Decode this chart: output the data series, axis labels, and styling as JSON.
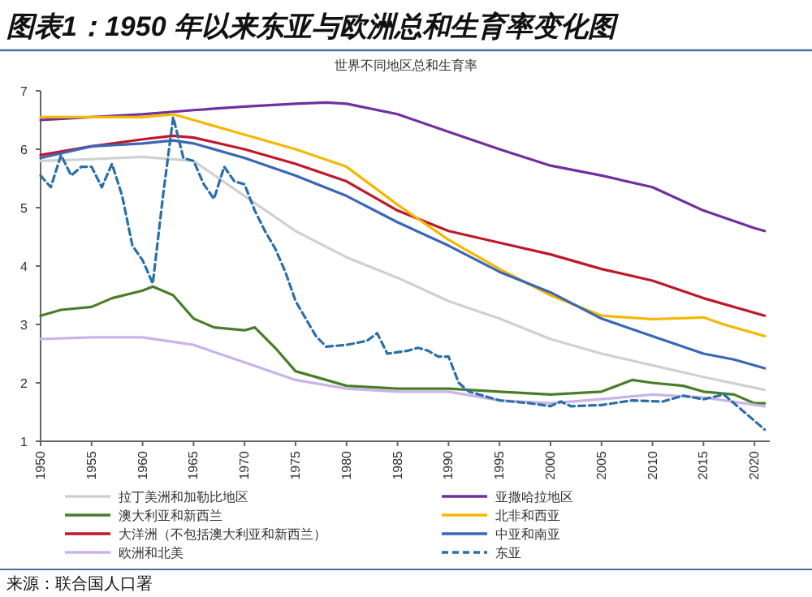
{
  "chart_data": {
    "type": "line",
    "title": "图表1：1950 年以来东亚与欧洲总和生育率变化图",
    "subtitle": "世界不同地区总和生育率",
    "annotations": [
      "来源：联合国人口署"
    ],
    "xlim": [
      1950,
      2021.5
    ],
    "xticks": [
      1950,
      1955,
      1960,
      1965,
      1970,
      1975,
      1980,
      1985,
      1990,
      1995,
      2000,
      2005,
      2010,
      2015,
      2020
    ],
    "ylim": [
      1,
      7
    ],
    "yticks": [
      1,
      2,
      3,
      4,
      5,
      6,
      7
    ],
    "grid": false,
    "legend": "bottom",
    "marker": "none",
    "series": [
      {
        "name": "拉丁美洲和加勒比地区",
        "color": "#d0d0d0",
        "line_style": "solid",
        "x": [
          1950,
          1955,
          1960,
          1965,
          1970,
          1975,
          1980,
          1985,
          1990,
          1995,
          2000,
          2005,
          2010,
          2015,
          2021
        ],
        "values": [
          5.8,
          5.83,
          5.87,
          5.8,
          5.2,
          4.6,
          4.15,
          3.8,
          3.4,
          3.1,
          2.75,
          2.5,
          2.3,
          2.1,
          1.88
        ]
      },
      {
        "name": "澳大利亚和新西兰",
        "color": "#4a7d28",
        "line_style": "solid",
        "x": [
          1950,
          1952,
          1955,
          1957,
          1960,
          1961,
          1963,
          1965,
          1967,
          1970,
          1971,
          1973,
          1975,
          1978,
          1980,
          1985,
          1990,
          1995,
          2000,
          2005,
          2008,
          2010,
          2013,
          2015,
          2018,
          2020,
          2021
        ],
        "values": [
          3.15,
          3.25,
          3.3,
          3.45,
          3.58,
          3.65,
          3.5,
          3.1,
          2.95,
          2.9,
          2.95,
          2.6,
          2.2,
          2.05,
          1.95,
          1.9,
          1.9,
          1.85,
          1.8,
          1.85,
          2.05,
          2.0,
          1.95,
          1.85,
          1.8,
          1.65,
          1.65
        ]
      },
      {
        "name": "大洋洲（不包括澳大利亚和新西兰）",
        "color": "#c0182a",
        "line_style": "solid",
        "x": [
          1950,
          1955,
          1960,
          1963,
          1965,
          1970,
          1975,
          1980,
          1985,
          1990,
          1995,
          2000,
          2005,
          2010,
          2015,
          2021
        ],
        "values": [
          5.9,
          6.05,
          6.17,
          6.23,
          6.2,
          6.0,
          5.75,
          5.45,
          4.95,
          4.6,
          4.4,
          4.2,
          3.95,
          3.75,
          3.45,
          3.15
        ]
      },
      {
        "name": "欧洲和北美",
        "color": "#c8b4e8",
        "line_style": "solid",
        "x": [
          1950,
          1955,
          1960,
          1965,
          1970,
          1975,
          1980,
          1985,
          1990,
          1995,
          2000,
          2005,
          2010,
          2015,
          2021
        ],
        "values": [
          2.75,
          2.78,
          2.78,
          2.65,
          2.35,
          2.05,
          1.9,
          1.85,
          1.85,
          1.7,
          1.65,
          1.72,
          1.8,
          1.75,
          1.6
        ]
      },
      {
        "name": "亚撒哈拉地区",
        "color": "#7030a0",
        "line_style": "solid",
        "x": [
          1950,
          1955,
          1960,
          1965,
          1970,
          1975,
          1978,
          1980,
          1985,
          1990,
          1995,
          2000,
          2005,
          2010,
          2015,
          2020,
          2021
        ],
        "values": [
          6.5,
          6.55,
          6.6,
          6.67,
          6.73,
          6.78,
          6.8,
          6.78,
          6.6,
          6.3,
          6.0,
          5.72,
          5.55,
          5.35,
          4.95,
          4.65,
          4.6
        ]
      },
      {
        "name": "北非和西亚",
        "color": "#f5b800",
        "line_style": "solid",
        "x": [
          1950,
          1955,
          1960,
          1963,
          1965,
          1970,
          1975,
          1980,
          1985,
          1990,
          1995,
          2000,
          2005,
          2010,
          2015,
          2017,
          2021
        ],
        "values": [
          6.55,
          6.55,
          6.55,
          6.6,
          6.5,
          6.25,
          6.0,
          5.7,
          5.05,
          4.45,
          3.95,
          3.5,
          3.15,
          3.09,
          3.12,
          3.0,
          2.8
        ]
      },
      {
        "name": "中亚和南亚",
        "color": "#3a66b8",
        "line_style": "solid",
        "x": [
          1950,
          1955,
          1960,
          1963,
          1965,
          1970,
          1975,
          1980,
          1985,
          1990,
          1995,
          2000,
          2005,
          2010,
          2015,
          2018,
          2021
        ],
        "values": [
          5.85,
          6.05,
          6.1,
          6.15,
          6.1,
          5.85,
          5.55,
          5.2,
          4.75,
          4.35,
          3.9,
          3.55,
          3.1,
          2.8,
          2.5,
          2.4,
          2.25
        ]
      },
      {
        "name": "东亚",
        "color": "#2a6fa8",
        "line_style": "dashed",
        "x": [
          1950,
          1951,
          1952,
          1953,
          1954,
          1955,
          1956,
          1957,
          1958,
          1959,
          1960,
          1961,
          1962,
          1963,
          1964,
          1965,
          1966,
          1967,
          1968,
          1969,
          1970,
          1971,
          1972,
          1973,
          1974,
          1975,
          1976,
          1977,
          1978,
          1980,
          1982,
          1983,
          1984,
          1986,
          1987,
          1988,
          1989,
          1990,
          1991,
          1992,
          1995,
          1998,
          2000,
          2001,
          2002,
          2005,
          2008,
          2011,
          2013,
          2015,
          2017,
          2018,
          2020,
          2021
        ],
        "values": [
          5.55,
          5.35,
          5.9,
          5.55,
          5.7,
          5.7,
          5.35,
          5.75,
          5.2,
          4.35,
          4.1,
          3.7,
          5.2,
          6.55,
          5.85,
          5.8,
          5.4,
          5.15,
          5.7,
          5.45,
          5.4,
          4.95,
          4.6,
          4.3,
          3.9,
          3.4,
          3.1,
          2.8,
          2.62,
          2.65,
          2.72,
          2.85,
          2.5,
          2.55,
          2.6,
          2.55,
          2.45,
          2.45,
          2.0,
          1.85,
          1.7,
          1.65,
          1.6,
          1.68,
          1.6,
          1.62,
          1.7,
          1.68,
          1.78,
          1.72,
          1.8,
          1.65,
          1.35,
          1.2
        ]
      }
    ]
  }
}
